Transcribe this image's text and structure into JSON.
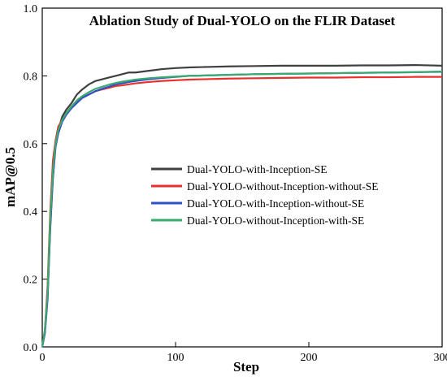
{
  "chart_data": {
    "type": "line",
    "title": "Ablation Study of Dual-YOLO on the FLIR Dataset",
    "xlabel": "Step",
    "ylabel": "mAP@0.5",
    "xlim": [
      0,
      300
    ],
    "ylim": [
      0,
      1.0
    ],
    "xticks": [
      0,
      100,
      200,
      300
    ],
    "yticks": [
      0.0,
      0.2,
      0.4,
      0.6,
      0.8,
      1.0
    ],
    "grid": false,
    "legend_position": "center-right",
    "series": [
      {
        "name": "Dual-YOLO-with-Inception-SE",
        "color": "#404040",
        "x": [
          0,
          2,
          4,
          6,
          8,
          10,
          12,
          15,
          18,
          22,
          26,
          30,
          35,
          40,
          45,
          50,
          55,
          60,
          65,
          70,
          80,
          90,
          100,
          110,
          120,
          140,
          160,
          180,
          200,
          220,
          240,
          260,
          280,
          300
        ],
        "y": [
          0.0,
          0.05,
          0.15,
          0.35,
          0.5,
          0.6,
          0.64,
          0.68,
          0.7,
          0.72,
          0.745,
          0.76,
          0.775,
          0.785,
          0.79,
          0.795,
          0.8,
          0.805,
          0.81,
          0.81,
          0.815,
          0.82,
          0.823,
          0.825,
          0.826,
          0.828,
          0.829,
          0.83,
          0.83,
          0.83,
          0.831,
          0.831,
          0.832,
          0.83
        ]
      },
      {
        "name": "Dual-YOLO-without-Inception-without-SE",
        "color": "#e8312c",
        "x": [
          0,
          2,
          4,
          6,
          8,
          10,
          12,
          15,
          18,
          22,
          26,
          30,
          35,
          40,
          45,
          50,
          55,
          60,
          65,
          70,
          80,
          90,
          100,
          110,
          120,
          140,
          160,
          180,
          200,
          220,
          240,
          260,
          280,
          300
        ],
        "y": [
          0.0,
          0.05,
          0.18,
          0.4,
          0.55,
          0.61,
          0.65,
          0.67,
          0.69,
          0.71,
          0.725,
          0.735,
          0.745,
          0.755,
          0.76,
          0.765,
          0.77,
          0.772,
          0.775,
          0.778,
          0.782,
          0.785,
          0.787,
          0.789,
          0.79,
          0.792,
          0.793,
          0.794,
          0.795,
          0.795,
          0.796,
          0.796,
          0.797,
          0.797
        ]
      },
      {
        "name": "Dual-YOLO-with-Inception-without-SE",
        "color": "#2f4fc8",
        "x": [
          0,
          2,
          4,
          6,
          8,
          10,
          12,
          15,
          18,
          22,
          26,
          30,
          35,
          40,
          45,
          50,
          55,
          60,
          65,
          70,
          80,
          90,
          100,
          110,
          120,
          140,
          160,
          180,
          200,
          220,
          240,
          260,
          280,
          300
        ],
        "y": [
          0.0,
          0.04,
          0.14,
          0.36,
          0.5,
          0.59,
          0.63,
          0.665,
          0.685,
          0.705,
          0.72,
          0.735,
          0.745,
          0.755,
          0.762,
          0.768,
          0.775,
          0.778,
          0.782,
          0.785,
          0.79,
          0.794,
          0.797,
          0.8,
          0.801,
          0.803,
          0.805,
          0.806,
          0.807,
          0.808,
          0.809,
          0.81,
          0.811,
          0.812
        ]
      },
      {
        "name": "Dual-YOLO-without-Inception-with-SE",
        "color": "#3aaa6e",
        "x": [
          0,
          2,
          4,
          6,
          8,
          10,
          12,
          15,
          18,
          22,
          26,
          30,
          35,
          40,
          45,
          50,
          55,
          60,
          65,
          70,
          80,
          90,
          100,
          110,
          120,
          140,
          160,
          180,
          200,
          220,
          240,
          260,
          280,
          300
        ],
        "y": [
          0.0,
          0.05,
          0.16,
          0.38,
          0.52,
          0.6,
          0.64,
          0.67,
          0.69,
          0.71,
          0.728,
          0.74,
          0.752,
          0.762,
          0.768,
          0.774,
          0.779,
          0.783,
          0.786,
          0.789,
          0.793,
          0.796,
          0.798,
          0.8,
          0.801,
          0.803,
          0.805,
          0.806,
          0.807,
          0.808,
          0.809,
          0.81,
          0.811,
          0.813
        ]
      }
    ]
  }
}
